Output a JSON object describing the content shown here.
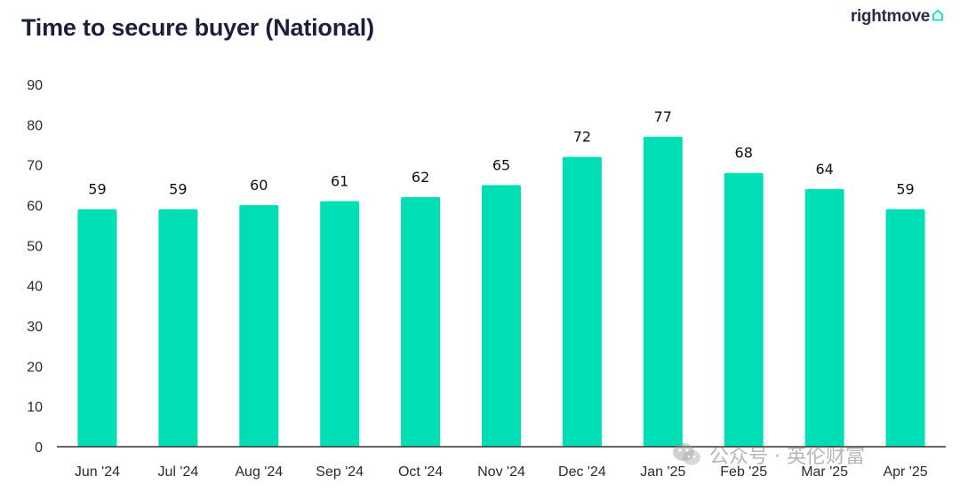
{
  "header": {
    "title": "Time to secure buyer (National)",
    "brand": "rightmove",
    "brand_icon": "house-icon"
  },
  "watermark": {
    "text": "公众号 · 英伦财富",
    "icon": "wechat-icon"
  },
  "colors": {
    "bar": "#00DEB6",
    "axis": "#333333",
    "text": "#2b2b2b"
  },
  "chart_data": {
    "type": "bar",
    "title": "Time to secure buyer (National)",
    "categories": [
      "Jun '24",
      "Jul '24",
      "Aug '24",
      "Sep '24",
      "Oct '24",
      "Nov '24",
      "Dec '24",
      "Jan '25",
      "Feb '25",
      "Mar '25",
      "Apr '25"
    ],
    "values": [
      59,
      59,
      60,
      61,
      62,
      65,
      72,
      77,
      68,
      64,
      59
    ],
    "ylim": [
      0,
      90
    ],
    "yticks": [
      0,
      10,
      20,
      30,
      40,
      50,
      60,
      70,
      80,
      90
    ],
    "xlabel": "",
    "ylabel": "",
    "grid": false,
    "data_labels": true,
    "legend": "none"
  }
}
